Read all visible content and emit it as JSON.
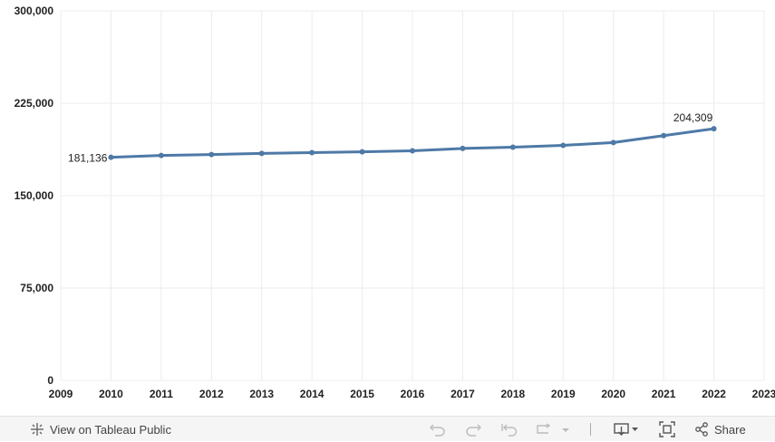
{
  "chart_data": {
    "type": "line",
    "x": [
      2010,
      2011,
      2012,
      2013,
      2014,
      2015,
      2016,
      2017,
      2018,
      2019,
      2020,
      2021,
      2022
    ],
    "series": [
      {
        "values": [
          181136,
          182600,
          183400,
          184300,
          184900,
          185600,
          186400,
          188300,
          189300,
          190800,
          193100,
          198700,
          204309
        ]
      }
    ],
    "xlim": [
      2009,
      2023
    ],
    "ylim": [
      0,
      300000
    ],
    "y_ticks": [
      "0",
      "75,000",
      "150,000",
      "225,000",
      "300,000"
    ],
    "x_ticks": [
      "2009",
      "2010",
      "2011",
      "2012",
      "2013",
      "2014",
      "2015",
      "2016",
      "2017",
      "2018",
      "2019",
      "2020",
      "2021",
      "2022",
      "2023"
    ],
    "data_labels": {
      "first": "181,136",
      "last": "204,309"
    },
    "grid": true,
    "line_color": "#4e79a7"
  },
  "toolbar": {
    "view_label": "View on Tableau Public",
    "share_label": "Share"
  },
  "icons": [
    "tableau-logo-icon",
    "undo-icon",
    "redo-icon",
    "revert-icon",
    "refresh-icon",
    "download-icon",
    "fullscreen-icon",
    "share-icon"
  ]
}
